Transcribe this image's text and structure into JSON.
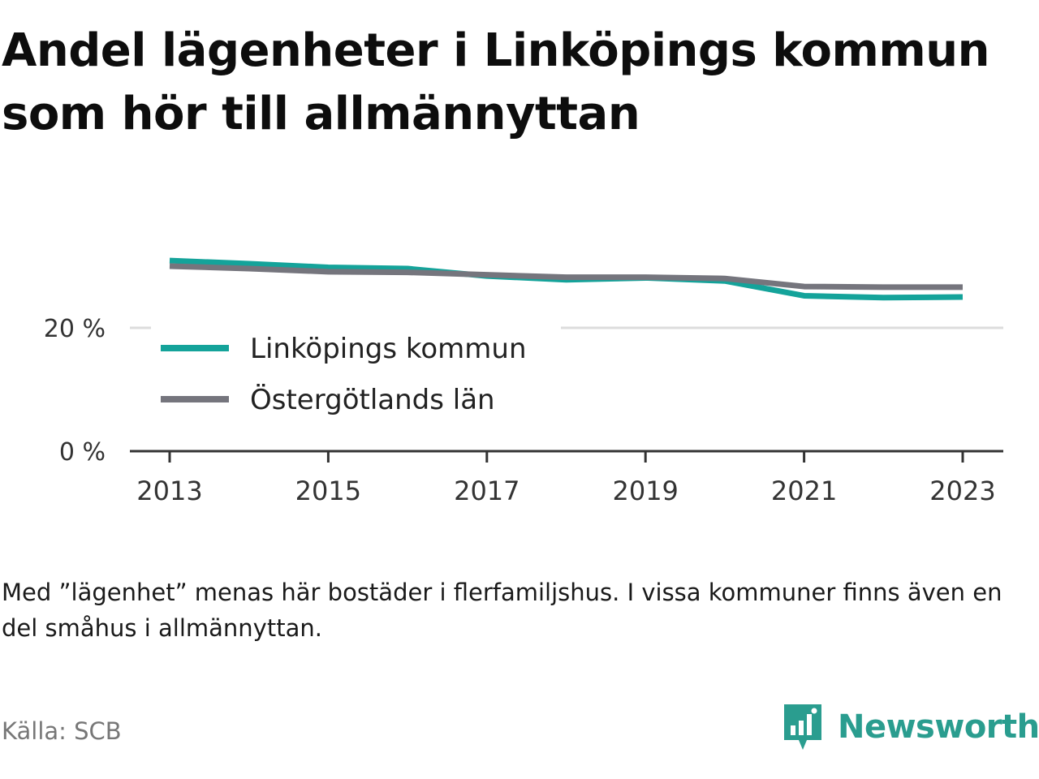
{
  "title": "Andel lägenheter i Linköpings kommun som hör till allmännyttan",
  "note": "Med ”lägenhet” menas här bostäder i flerfamiljshus. I vissa kommuner finns även en del småhus i allmännyttan.",
  "source": "Källa: SCB",
  "brand": {
    "name": "Newsworthy",
    "icon": "newsworthy-logo-icon"
  },
  "colors": {
    "linkoping": "#14a39a",
    "ostergotland": "#75757d",
    "axis": "#333333",
    "grid": "#dddddd",
    "brand": "#2a9d8f"
  },
  "chart_data": {
    "type": "line",
    "title": "Andel lägenheter i Linköpings kommun som hör till allmännyttan",
    "x": [
      2013,
      2014,
      2015,
      2016,
      2017,
      2018,
      2019,
      2020,
      2021,
      2022,
      2023
    ],
    "x_ticks": [
      "2013",
      "2015",
      "2017",
      "2019",
      "2021",
      "2023"
    ],
    "y_ticks": [
      {
        "value": 0,
        "label": "0 %"
      },
      {
        "value": 20,
        "label": "20 %"
      }
    ],
    "ylim": [
      0,
      33
    ],
    "grid": true,
    "legend_position": "inside-left",
    "series": [
      {
        "name": "Linköpings kommun",
        "color": "#14a39a",
        "values": [
          30.9,
          30.4,
          29.8,
          29.6,
          28.4,
          27.8,
          28.1,
          27.6,
          25.2,
          24.9,
          25.0
        ]
      },
      {
        "name": "Östergötlands län",
        "color": "#75757d",
        "values": [
          30.0,
          29.6,
          29.1,
          29.0,
          28.6,
          28.2,
          28.2,
          28.0,
          26.7,
          26.6,
          26.6
        ]
      }
    ]
  }
}
